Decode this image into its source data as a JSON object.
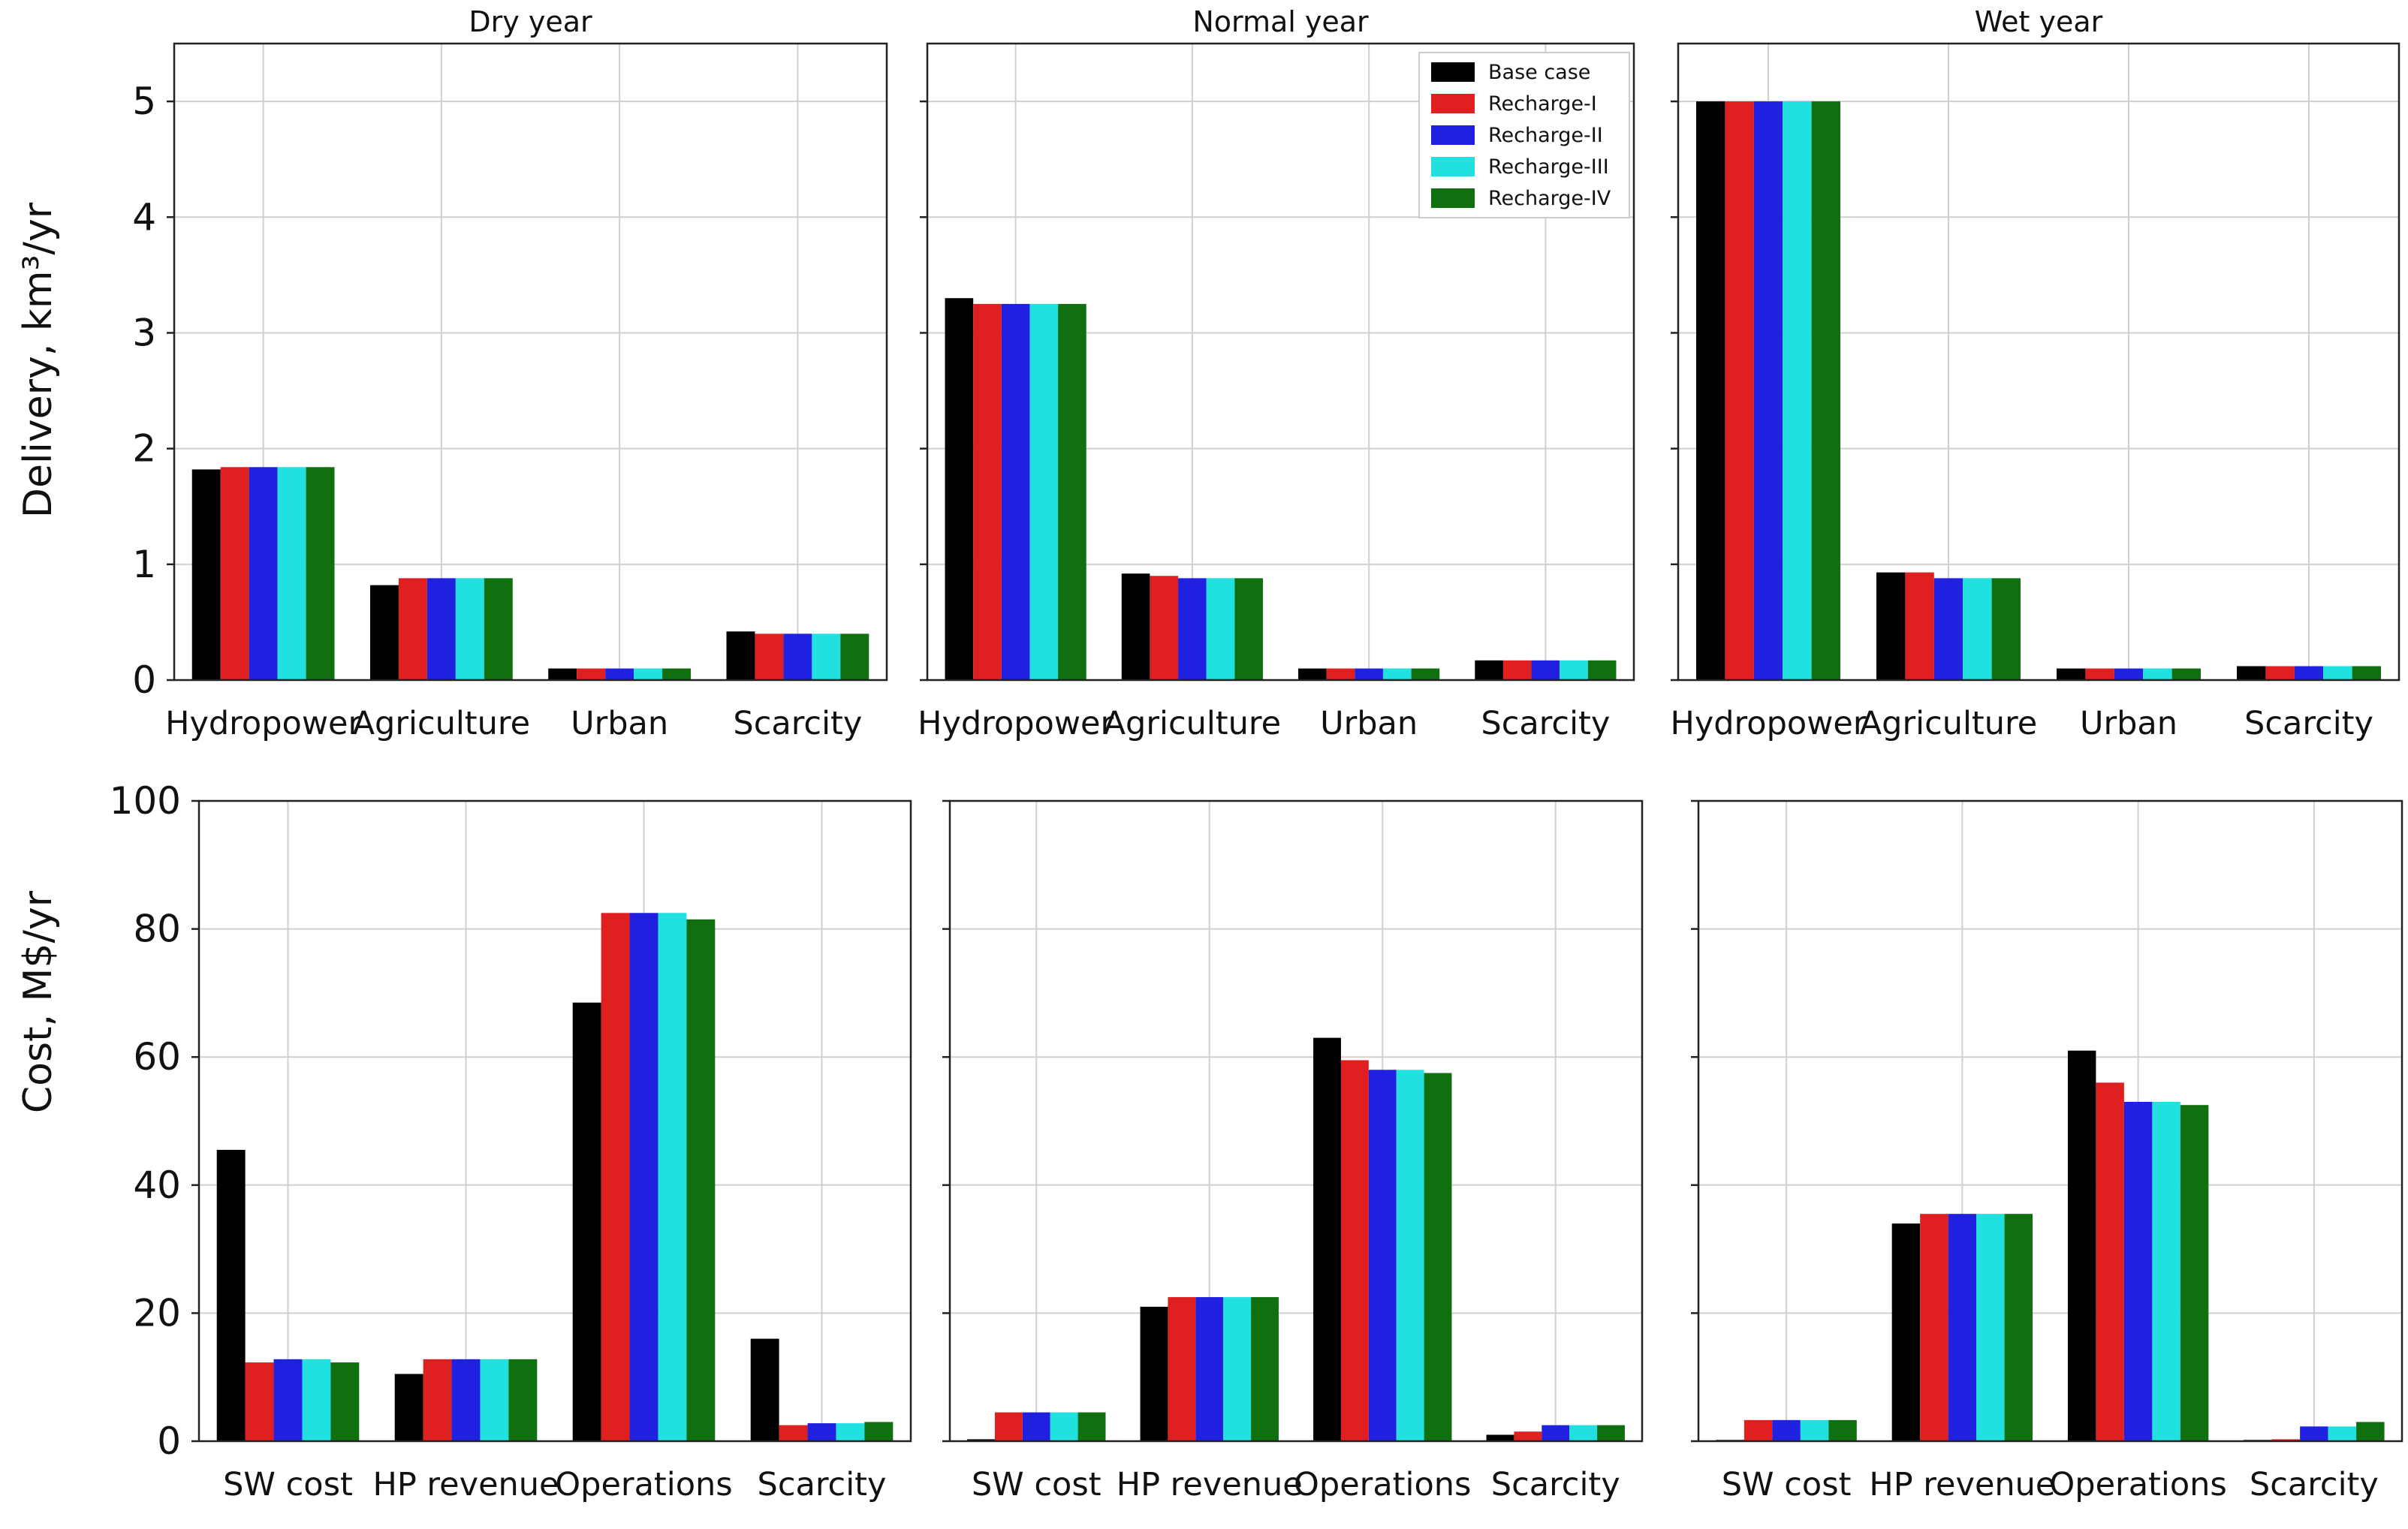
{
  "legend": {
    "entries": [
      "Base case",
      "Recharge-I",
      "Recharge-II",
      "Recharge-III",
      "Recharge-IV"
    ],
    "colors": [
      "#000000",
      "#e02020",
      "#2020e0",
      "#20e0e0",
      "#107010"
    ]
  },
  "rows": {
    "delivery": {
      "ylabel": "Delivery, km³/yr",
      "yticks": [
        "0",
        "1",
        "2",
        "3",
        "4",
        "5"
      ],
      "ylim": [
        0,
        5.5
      ]
    },
    "cost": {
      "ylabel": "Cost, M$/yr",
      "yticks": [
        "0",
        "20",
        "40",
        "60",
        "80",
        "100"
      ],
      "ylim": [
        0,
        100
      ]
    }
  },
  "chart_data": [
    {
      "type": "bar",
      "title": "Dry year",
      "row": "delivery",
      "categories": [
        "Hydropower",
        "Agriculture",
        "Urban",
        "Scarcity"
      ],
      "ylabel": "Delivery, km³/yr",
      "ylim": [
        0,
        5.5
      ],
      "series": [
        {
          "name": "Base case",
          "values": [
            1.82,
            0.82,
            0.1,
            0.42
          ]
        },
        {
          "name": "Recharge-I",
          "values": [
            1.84,
            0.88,
            0.1,
            0.4
          ]
        },
        {
          "name": "Recharge-II",
          "values": [
            1.84,
            0.88,
            0.1,
            0.4
          ]
        },
        {
          "name": "Recharge-III",
          "values": [
            1.84,
            0.88,
            0.1,
            0.4
          ]
        },
        {
          "name": "Recharge-IV",
          "values": [
            1.84,
            0.88,
            0.1,
            0.4
          ]
        }
      ]
    },
    {
      "type": "bar",
      "title": "Normal year",
      "row": "delivery",
      "categories": [
        "Hydropower",
        "Agriculture",
        "Urban",
        "Scarcity"
      ],
      "ylim": [
        0,
        5.5
      ],
      "series": [
        {
          "name": "Base case",
          "values": [
            3.3,
            0.92,
            0.1,
            0.17
          ]
        },
        {
          "name": "Recharge-I",
          "values": [
            3.25,
            0.9,
            0.1,
            0.17
          ]
        },
        {
          "name": "Recharge-II",
          "values": [
            3.25,
            0.88,
            0.1,
            0.17
          ]
        },
        {
          "name": "Recharge-III",
          "values": [
            3.25,
            0.88,
            0.1,
            0.17
          ]
        },
        {
          "name": "Recharge-IV",
          "values": [
            3.25,
            0.88,
            0.1,
            0.17
          ]
        }
      ]
    },
    {
      "type": "bar",
      "title": "Wet year",
      "row": "delivery",
      "categories": [
        "Hydropower",
        "Agriculture",
        "Urban",
        "Scarcity"
      ],
      "ylim": [
        0,
        5.5
      ],
      "series": [
        {
          "name": "Base case",
          "values": [
            5.0,
            0.93,
            0.1,
            0.12
          ]
        },
        {
          "name": "Recharge-I",
          "values": [
            5.0,
            0.93,
            0.1,
            0.12
          ]
        },
        {
          "name": "Recharge-II",
          "values": [
            5.0,
            0.88,
            0.1,
            0.12
          ]
        },
        {
          "name": "Recharge-III",
          "values": [
            5.0,
            0.88,
            0.1,
            0.12
          ]
        },
        {
          "name": "Recharge-IV",
          "values": [
            5.0,
            0.88,
            0.1,
            0.12
          ]
        }
      ]
    },
    {
      "type": "bar",
      "title": "",
      "row": "cost",
      "categories": [
        "SW cost",
        "HP revenue",
        "Operations",
        "Scarcity"
      ],
      "ylabel": "Cost, M$/yr",
      "ylim": [
        0,
        100
      ],
      "series": [
        {
          "name": "Base case",
          "values": [
            45.5,
            10.5,
            68.5,
            16
          ]
        },
        {
          "name": "Recharge-I",
          "values": [
            12.3,
            12.8,
            82.5,
            2.5
          ]
        },
        {
          "name": "Recharge-II",
          "values": [
            12.8,
            12.8,
            82.5,
            2.8
          ]
        },
        {
          "name": "Recharge-III",
          "values": [
            12.8,
            12.8,
            82.5,
            2.8
          ]
        },
        {
          "name": "Recharge-IV",
          "values": [
            12.3,
            12.8,
            81.5,
            3
          ]
        }
      ]
    },
    {
      "type": "bar",
      "title": "",
      "row": "cost",
      "categories": [
        "SW cost",
        "HP revenue",
        "Operations",
        "Scarcity"
      ],
      "ylim": [
        0,
        100
      ],
      "series": [
        {
          "name": "Base case",
          "values": [
            0.3,
            21,
            63,
            1
          ]
        },
        {
          "name": "Recharge-I",
          "values": [
            4.5,
            22.5,
            59.5,
            1.5
          ]
        },
        {
          "name": "Recharge-II",
          "values": [
            4.5,
            22.5,
            58,
            2.5
          ]
        },
        {
          "name": "Recharge-III",
          "values": [
            4.5,
            22.5,
            58,
            2.5
          ]
        },
        {
          "name": "Recharge-IV",
          "values": [
            4.5,
            22.5,
            57.5,
            2.5
          ]
        }
      ]
    },
    {
      "type": "bar",
      "title": "",
      "row": "cost",
      "categories": [
        "SW cost",
        "HP revenue",
        "Operations",
        "Scarcity"
      ],
      "ylim": [
        0,
        100
      ],
      "series": [
        {
          "name": "Base case",
          "values": [
            0.2,
            34,
            61,
            0.2
          ]
        },
        {
          "name": "Recharge-I",
          "values": [
            3.3,
            35.5,
            56,
            0.3
          ]
        },
        {
          "name": "Recharge-II",
          "values": [
            3.3,
            35.5,
            53,
            2.3
          ]
        },
        {
          "name": "Recharge-III",
          "values": [
            3.3,
            35.5,
            53,
            2.3
          ]
        },
        {
          "name": "Recharge-IV",
          "values": [
            3.3,
            35.5,
            52.5,
            3
          ]
        }
      ]
    }
  ]
}
